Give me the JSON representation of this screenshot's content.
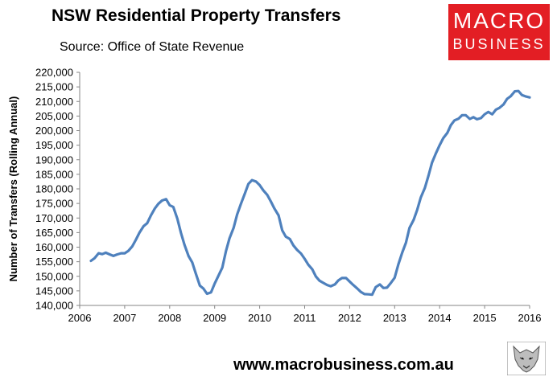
{
  "header": {
    "title": "NSW Residential Property Transfers",
    "subtitle": "Source: Office of State Revenue"
  },
  "logo": {
    "line1": "MACRO",
    "line2": "BUSINESS",
    "bg_color": "#e31e24"
  },
  "footer": {
    "url": "www.macrobusiness.com.au"
  },
  "chart_data": {
    "type": "line",
    "title": "NSW Residential Property Transfers",
    "subtitle": "Source: Office of State Revenue",
    "xlabel": "",
    "ylabel": "Number of Transfers (Rolling Annual)",
    "xlim": [
      2006,
      2016
    ],
    "ylim": [
      140000,
      220000
    ],
    "x_ticks": [
      "2006",
      "2007",
      "2008",
      "2009",
      "2010",
      "2011",
      "2012",
      "2013",
      "2014",
      "2015",
      "2016"
    ],
    "y_ticks": [
      "140,000",
      "145,000",
      "150,000",
      "155,000",
      "160,000",
      "165,000",
      "170,000",
      "175,000",
      "180,000",
      "185,000",
      "190,000",
      "195,000",
      "200,000",
      "205,000",
      "210,000",
      "215,000",
      "220,000"
    ],
    "grid": false,
    "legend": "none",
    "series": [
      {
        "color": "#4f81bd",
        "x": [
          2006.25,
          2006.33,
          2006.42,
          2006.5,
          2006.58,
          2006.67,
          2006.75,
          2006.83,
          2006.92,
          2007.0,
          2007.08,
          2007.17,
          2007.25,
          2007.33,
          2007.42,
          2007.5,
          2007.58,
          2007.67,
          2007.75,
          2007.83,
          2007.92,
          2008.0,
          2008.08,
          2008.17,
          2008.25,
          2008.33,
          2008.42,
          2008.5,
          2008.58,
          2008.67,
          2008.75,
          2008.83,
          2008.92,
          2009.0,
          2009.08,
          2009.17,
          2009.25,
          2009.33,
          2009.42,
          2009.5,
          2009.58,
          2009.67,
          2009.75,
          2009.83,
          2009.92,
          2010.0,
          2010.08,
          2010.17,
          2010.25,
          2010.33,
          2010.42,
          2010.5,
          2010.58,
          2010.67,
          2010.75,
          2010.83,
          2010.92,
          2011.0,
          2011.08,
          2011.17,
          2011.25,
          2011.33,
          2011.42,
          2011.5,
          2011.58,
          2011.67,
          2011.75,
          2011.83,
          2011.92,
          2012.0,
          2012.08,
          2012.17,
          2012.25,
          2012.33,
          2012.42,
          2012.5,
          2012.58,
          2012.67,
          2012.75,
          2012.83,
          2012.92,
          2013.0,
          2013.08,
          2013.17,
          2013.25,
          2013.33,
          2013.42,
          2013.5,
          2013.58,
          2013.67,
          2013.75,
          2013.83,
          2013.92,
          2014.0,
          2014.08,
          2014.17,
          2014.25,
          2014.33,
          2014.42,
          2014.5,
          2014.58,
          2014.67,
          2014.75,
          2014.83,
          2014.92,
          2015.0,
          2015.08,
          2015.17,
          2015.25,
          2015.33,
          2015.42,
          2015.5,
          2015.58,
          2015.67,
          2015.75,
          2015.83,
          2015.92,
          2016.0
        ],
        "values": [
          155300,
          156200,
          157900,
          157600,
          158100,
          157500,
          157000,
          157500,
          157900,
          157900,
          158700,
          160300,
          162600,
          165000,
          167200,
          168200,
          170800,
          173300,
          174900,
          176000,
          176500,
          174400,
          173800,
          169800,
          164900,
          160800,
          156900,
          154800,
          151000,
          146800,
          145800,
          144000,
          144500,
          147500,
          150100,
          153000,
          158600,
          163000,
          166600,
          171200,
          174700,
          178400,
          181700,
          183000,
          182500,
          181300,
          179500,
          177900,
          175600,
          173200,
          170900,
          165800,
          163600,
          162800,
          160600,
          159100,
          157800,
          156000,
          154000,
          152400,
          149900,
          148500,
          147700,
          147000,
          146600,
          147200,
          148600,
          149400,
          149400,
          148200,
          147000,
          145800,
          144600,
          143900,
          143800,
          143700,
          146300,
          147200,
          146000,
          146100,
          147800,
          149500,
          154000,
          158200,
          161500,
          166600,
          169300,
          172800,
          177000,
          180300,
          184400,
          189000,
          192300,
          195000,
          197400,
          199200,
          201900,
          203500,
          204100,
          205300,
          205300,
          204000,
          204600,
          203900,
          204300,
          205600,
          206400,
          205600,
          207200,
          207800,
          209000,
          210900,
          211800,
          213500,
          213600,
          212200,
          211700,
          211400
        ]
      }
    ]
  }
}
